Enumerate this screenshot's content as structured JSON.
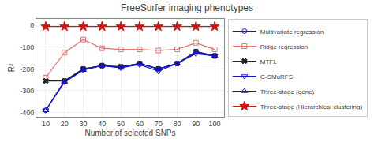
{
  "chart_data": {
    "type": "line",
    "title": "FreeSurfer imaging phenotypes",
    "xlabel": "Number of selected SNPs",
    "ylabel": "R²",
    "x": [
      10,
      20,
      30,
      40,
      50,
      60,
      70,
      80,
      90,
      100
    ],
    "series": [
      {
        "name": "Multivariate regression",
        "color": "#1414cc",
        "marker": "circle-open",
        "values": [
          -390,
          -255,
          -200,
          -185,
          -190,
          -175,
          -200,
          -175,
          -120,
          -140
        ]
      },
      {
        "name": "Ridge regression",
        "color": "#e87070",
        "marker": "square-open",
        "values": [
          -240,
          -125,
          -65,
          -105,
          -110,
          -110,
          -115,
          -110,
          -80,
          -110
        ]
      },
      {
        "name": "MTFL",
        "color": "#222222",
        "marker": "x",
        "values": [
          -255,
          -255,
          -200,
          -185,
          -190,
          -175,
          -200,
          -175,
          -120,
          -140
        ]
      },
      {
        "name": "G-SMuRFS",
        "color": "#1414cc",
        "marker": "triangle-down-open",
        "values": [
          -390,
          -260,
          -205,
          -185,
          -195,
          -180,
          -210,
          -175,
          -130,
          -140
        ]
      },
      {
        "name": "Three-stage (gene)",
        "color": "#1414cc",
        "marker": "triangle-up-open",
        "values": [
          -390,
          -260,
          -205,
          -185,
          -195,
          -175,
          -200,
          -175,
          -125,
          -140
        ]
      },
      {
        "name": "Three-stage (Hierarchical clustering)",
        "color": "#cc1414",
        "marker": "star",
        "values": [
          -5,
          -5,
          -5,
          -5,
          -5,
          -5,
          -5,
          -5,
          -5,
          -5
        ]
      }
    ],
    "xlim": [
      5,
      105
    ],
    "ylim": [
      -420,
      30
    ],
    "xticks": [
      10,
      20,
      30,
      40,
      50,
      60,
      70,
      80,
      90,
      100
    ],
    "yticks": [
      -400,
      -300,
      -200,
      -100,
      0
    ],
    "grid": true,
    "legend": "lower right"
  }
}
